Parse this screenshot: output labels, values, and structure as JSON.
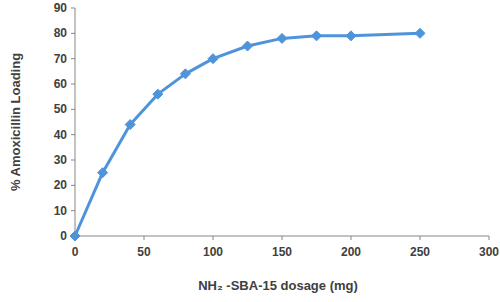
{
  "chart_data": {
    "type": "line",
    "x_label": "NH₂ -SBA-15 dosage (mg)",
    "y_label": "% Amoxicillin Loading",
    "x": [
      0,
      20,
      40,
      60,
      80,
      100,
      125,
      150,
      175,
      200,
      250
    ],
    "values": [
      0,
      25,
      44,
      56,
      64,
      70,
      75,
      78,
      79,
      79,
      80
    ],
    "color": "#4f94db",
    "marker": "diamond",
    "line_style": "solid",
    "xlim": [
      0,
      300
    ],
    "xticks": [
      0,
      50,
      100,
      150,
      200,
      250,
      300
    ],
    "ylim": [
      0,
      90
    ],
    "yticks": [
      0,
      10,
      20,
      30,
      40,
      50,
      60,
      70,
      80,
      90
    ],
    "grid": false
  }
}
